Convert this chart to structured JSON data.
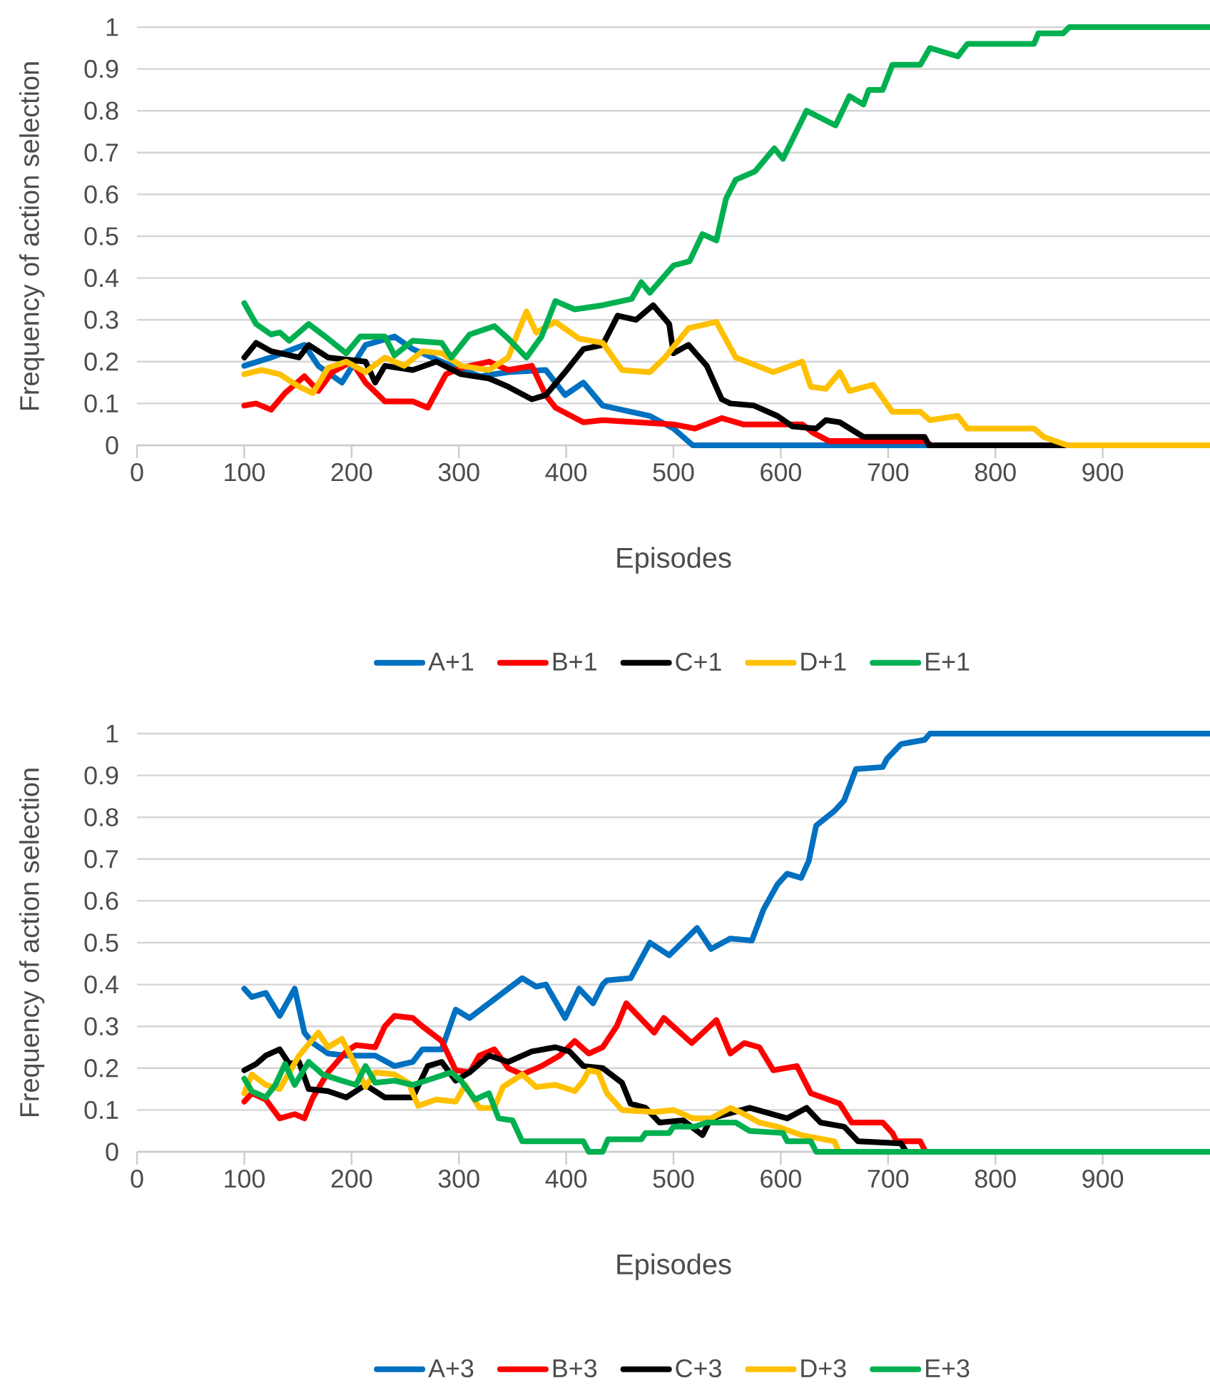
{
  "chart_data": [
    {
      "type": "line",
      "xlabel": "Episodes",
      "ylabel": "Frequency of action selection",
      "xlim": [
        0,
        1000
      ],
      "xticks": [
        0,
        100,
        200,
        300,
        400,
        500,
        600,
        700,
        800,
        900
      ],
      "ylim": [
        0,
        1
      ],
      "yticks": [
        0,
        0.1,
        0.2,
        0.3,
        0.4,
        0.5,
        0.6,
        0.7,
        0.8,
        0.9,
        1
      ],
      "grid": "y",
      "legend": "bottom",
      "series": [
        {
          "name": "A+1",
          "color": "#0070c0",
          "x": [
            100,
            125,
            156,
            169,
            191,
            213,
            240,
            257,
            293,
            320,
            346,
            381,
            399,
            416,
            434,
            478,
            500,
            518,
            1000
          ],
          "values": [
            0.19,
            0.21,
            0.24,
            0.19,
            0.15,
            0.24,
            0.26,
            0.23,
            0.19,
            0.165,
            0.175,
            0.18,
            0.12,
            0.15,
            0.095,
            0.07,
            0.04,
            0,
            0
          ]
        },
        {
          "name": "B+1",
          "color": "#ff0000",
          "x": [
            100,
            111,
            125,
            138,
            156,
            169,
            182,
            200,
            213,
            231,
            257,
            271,
            288,
            302,
            328,
            346,
            368,
            381,
            390,
            416,
            434,
            500,
            520,
            545,
            565,
            620,
            630,
            645,
            735,
            740,
            1000
          ],
          "values": [
            0.095,
            0.1,
            0.085,
            0.125,
            0.165,
            0.13,
            0.175,
            0.2,
            0.15,
            0.105,
            0.105,
            0.09,
            0.17,
            0.185,
            0.2,
            0.18,
            0.19,
            0.12,
            0.09,
            0.055,
            0.06,
            0.05,
            0.04,
            0.065,
            0.05,
            0.05,
            0.03,
            0.01,
            0.01,
            0,
            0
          ]
        },
        {
          "name": "C+1",
          "color": "#000000",
          "x": [
            100,
            111,
            125,
            151,
            160,
            178,
            213,
            222,
            231,
            257,
            279,
            302,
            328,
            346,
            368,
            381,
            399,
            416,
            434,
            448,
            465,
            481,
            496,
            500,
            514,
            531,
            545,
            553,
            575,
            597,
            611,
            633,
            642,
            655,
            677,
            734,
            738,
            1000
          ],
          "values": [
            0.21,
            0.245,
            0.225,
            0.21,
            0.24,
            0.21,
            0.2,
            0.15,
            0.19,
            0.18,
            0.2,
            0.17,
            0.16,
            0.14,
            0.11,
            0.12,
            0.175,
            0.23,
            0.24,
            0.31,
            0.3,
            0.335,
            0.29,
            0.22,
            0.24,
            0.19,
            0.11,
            0.1,
            0.095,
            0.07,
            0.045,
            0.04,
            0.06,
            0.055,
            0.02,
            0.02,
            0,
            0
          ]
        },
        {
          "name": "D+1",
          "color": "#ffc000",
          "x": [
            100,
            116,
            133,
            151,
            164,
            178,
            195,
            213,
            231,
            249,
            266,
            284,
            302,
            328,
            346,
            355,
            363,
            372,
            390,
            412,
            434,
            452,
            478,
            492,
            514,
            540,
            558,
            593,
            620,
            628,
            642,
            655,
            664,
            686,
            704,
            730,
            739,
            765,
            774,
            836,
            845,
            867,
            1000
          ],
          "values": [
            0.17,
            0.18,
            0.17,
            0.14,
            0.125,
            0.185,
            0.2,
            0.175,
            0.21,
            0.19,
            0.225,
            0.22,
            0.19,
            0.18,
            0.21,
            0.27,
            0.32,
            0.27,
            0.295,
            0.255,
            0.245,
            0.18,
            0.175,
            0.21,
            0.28,
            0.295,
            0.21,
            0.175,
            0.2,
            0.14,
            0.135,
            0.175,
            0.13,
            0.145,
            0.08,
            0.08,
            0.06,
            0.07,
            0.04,
            0.04,
            0.02,
            0,
            0
          ]
        },
        {
          "name": "E+1",
          "color": "#00b050",
          "x": [
            100,
            111,
            125,
            133,
            142,
            160,
            178,
            195,
            208,
            231,
            240,
            257,
            284,
            293,
            310,
            333,
            346,
            363,
            377,
            390,
            408,
            434,
            461,
            470,
            478,
            500,
            515,
            527,
            540,
            549,
            558,
            576,
            594,
            602,
            624,
            651,
            664,
            677,
            682,
            695,
            704,
            730,
            739,
            765,
            774,
            836,
            840,
            863,
            869,
            1000
          ],
          "values": [
            0.34,
            0.29,
            0.265,
            0.27,
            0.25,
            0.29,
            0.255,
            0.22,
            0.26,
            0.26,
            0.215,
            0.25,
            0.245,
            0.21,
            0.265,
            0.285,
            0.255,
            0.21,
            0.26,
            0.345,
            0.325,
            0.335,
            0.35,
            0.39,
            0.365,
            0.43,
            0.44,
            0.505,
            0.49,
            0.59,
            0.635,
            0.655,
            0.71,
            0.685,
            0.8,
            0.765,
            0.835,
            0.815,
            0.85,
            0.85,
            0.91,
            0.91,
            0.95,
            0.93,
            0.96,
            0.96,
            0.985,
            0.985,
            1,
            1
          ]
        }
      ]
    },
    {
      "type": "line",
      "xlabel": "Episodes",
      "ylabel": "Frequency of action selection",
      "xlim": [
        0,
        1000
      ],
      "xticks": [
        0,
        100,
        200,
        300,
        400,
        500,
        600,
        700,
        800,
        900
      ],
      "ylim": [
        0,
        1
      ],
      "yticks": [
        0,
        0.1,
        0.2,
        0.3,
        0.4,
        0.5,
        0.6,
        0.7,
        0.8,
        0.9,
        1
      ],
      "grid": "y",
      "legend": "bottom",
      "series": [
        {
          "name": "A+3",
          "color": "#0070c0",
          "x": [
            100,
            107,
            120,
            133,
            147,
            156,
            164,
            178,
            195,
            222,
            240,
            257,
            266,
            284,
            297,
            310,
            328,
            346,
            359,
            372,
            381,
            399,
            412,
            425,
            434,
            438,
            460,
            478,
            496,
            522,
            535,
            553,
            573,
            584,
            597,
            606,
            619,
            626,
            633,
            650,
            659,
            670,
            695,
            699,
            712,
            734,
            739,
            1000
          ],
          "values": [
            0.39,
            0.37,
            0.38,
            0.325,
            0.39,
            0.285,
            0.26,
            0.235,
            0.23,
            0.23,
            0.205,
            0.215,
            0.245,
            0.245,
            0.34,
            0.32,
            0.355,
            0.39,
            0.415,
            0.395,
            0.4,
            0.32,
            0.39,
            0.355,
            0.4,
            0.41,
            0.415,
            0.5,
            0.47,
            0.535,
            0.485,
            0.51,
            0.505,
            0.58,
            0.64,
            0.665,
            0.655,
            0.695,
            0.78,
            0.815,
            0.84,
            0.915,
            0.92,
            0.94,
            0.975,
            0.985,
            1,
            1
          ]
        },
        {
          "name": "B+3",
          "color": "#ff0000",
          "x": [
            100,
            107,
            120,
            133,
            147,
            156,
            164,
            178,
            195,
            204,
            222,
            231,
            240,
            257,
            266,
            284,
            297,
            310,
            319,
            333,
            346,
            359,
            377,
            394,
            408,
            421,
            434,
            447,
            456,
            482,
            491,
            517,
            540,
            553,
            566,
            580,
            593,
            615,
            628,
            655,
            666,
            695,
            704,
            708,
            730,
            735,
            1000
          ],
          "values": [
            0.12,
            0.14,
            0.125,
            0.08,
            0.09,
            0.08,
            0.13,
            0.19,
            0.24,
            0.255,
            0.25,
            0.3,
            0.325,
            0.32,
            0.3,
            0.265,
            0.195,
            0.19,
            0.23,
            0.245,
            0.2,
            0.185,
            0.205,
            0.23,
            0.265,
            0.235,
            0.25,
            0.3,
            0.355,
            0.285,
            0.32,
            0.26,
            0.315,
            0.235,
            0.26,
            0.25,
            0.195,
            0.205,
            0.14,
            0.115,
            0.07,
            0.07,
            0.045,
            0.025,
            0.025,
            0,
            0
          ]
        },
        {
          "name": "C+3",
          "color": "#000000",
          "x": [
            100,
            111,
            120,
            133,
            142,
            151,
            160,
            178,
            195,
            213,
            231,
            257,
            271,
            284,
            297,
            310,
            328,
            346,
            368,
            390,
            403,
            416,
            434,
            452,
            460,
            474,
            487,
            509,
            527,
            535,
            571,
            606,
            624,
            637,
            659,
            672,
            712,
            717,
            1000
          ],
          "values": [
            0.195,
            0.21,
            0.23,
            0.245,
            0.21,
            0.215,
            0.15,
            0.145,
            0.13,
            0.16,
            0.13,
            0.13,
            0.205,
            0.215,
            0.17,
            0.19,
            0.23,
            0.215,
            0.24,
            0.25,
            0.24,
            0.205,
            0.2,
            0.165,
            0.115,
            0.105,
            0.07,
            0.075,
            0.04,
            0.08,
            0.105,
            0.08,
            0.105,
            0.07,
            0.06,
            0.025,
            0.02,
            0,
            0
          ]
        },
        {
          "name": "D+3",
          "color": "#ffc000",
          "x": [
            100,
            107,
            120,
            133,
            151,
            169,
            178,
            191,
            204,
            213,
            222,
            240,
            253,
            262,
            279,
            297,
            306,
            319,
            333,
            341,
            359,
            372,
            390,
            408,
            416,
            421,
            430,
            438,
            452,
            482,
            500,
            518,
            535,
            553,
            562,
            580,
            597,
            619,
            650,
            654,
            1000
          ],
          "values": [
            0.14,
            0.185,
            0.16,
            0.15,
            0.23,
            0.285,
            0.25,
            0.27,
            0.205,
            0.155,
            0.19,
            0.185,
            0.165,
            0.11,
            0.125,
            0.12,
            0.16,
            0.105,
            0.105,
            0.155,
            0.185,
            0.155,
            0.16,
            0.145,
            0.17,
            0.195,
            0.19,
            0.14,
            0.1,
            0.095,
            0.1,
            0.08,
            0.08,
            0.105,
            0.095,
            0.07,
            0.06,
            0.04,
            0.025,
            0,
            0
          ]
        },
        {
          "name": "E+3",
          "color": "#00b050",
          "x": [
            100,
            107,
            120,
            129,
            138,
            147,
            160,
            173,
            191,
            204,
            213,
            222,
            240,
            257,
            275,
            293,
            302,
            315,
            328,
            337,
            350,
            359,
            416,
            421,
            434,
            439,
            470,
            474,
            496,
            500,
            520,
            531,
            558,
            571,
            602,
            606,
            628,
            633,
            1000
          ],
          "values": [
            0.175,
            0.145,
            0.13,
            0.16,
            0.21,
            0.16,
            0.215,
            0.185,
            0.17,
            0.16,
            0.205,
            0.165,
            0.17,
            0.16,
            0.175,
            0.19,
            0.17,
            0.125,
            0.14,
            0.08,
            0.075,
            0.025,
            0.025,
            0,
            0,
            0.03,
            0.03,
            0.045,
            0.045,
            0.06,
            0.06,
            0.07,
            0.07,
            0.05,
            0.045,
            0.025,
            0.025,
            0,
            0
          ]
        }
      ]
    }
  ]
}
